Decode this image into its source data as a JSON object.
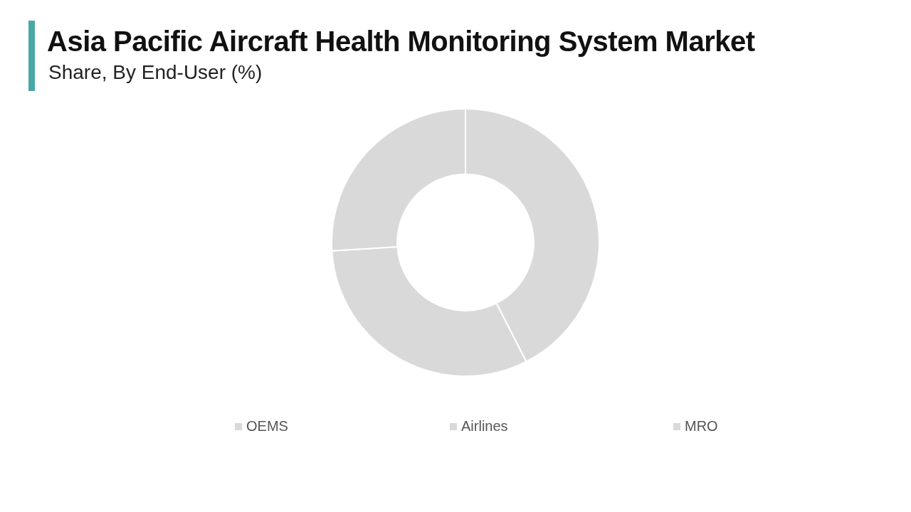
{
  "chart_data": {
    "type": "donut",
    "title": "Asia Pacific Aircraft Health Monitoring System Market",
    "subtitle": "Share, By End-User (%)",
    "categories": [
      "OEMS",
      "Airlines",
      "MRO"
    ],
    "values": [
      42.5,
      31.5,
      26
    ],
    "colors": [
      "#d9d9d9",
      "#d9d9d9",
      "#d9d9d9"
    ],
    "legend": "bottom"
  }
}
